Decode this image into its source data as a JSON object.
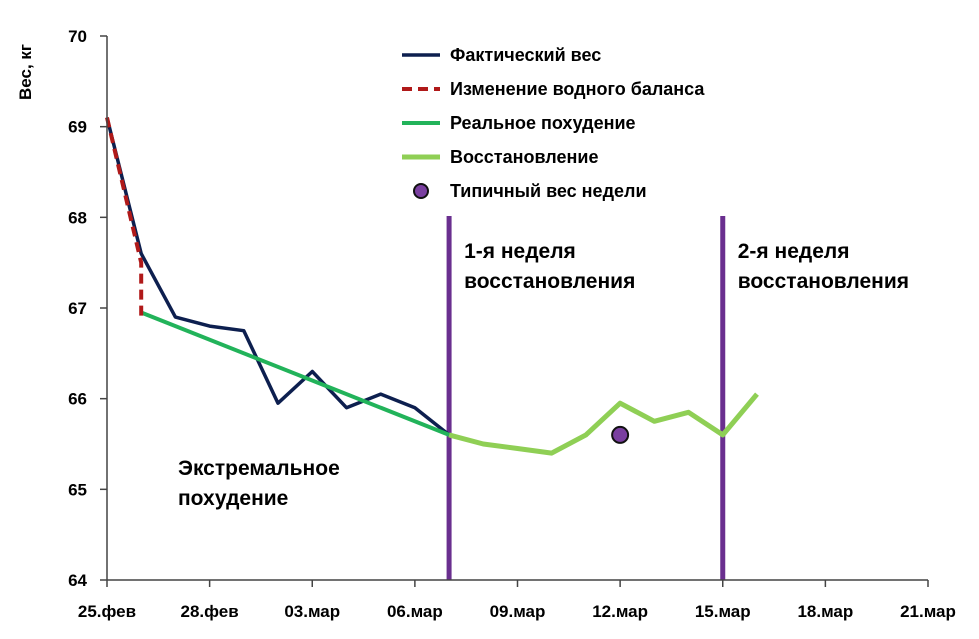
{
  "chart_data": {
    "type": "line",
    "ylabel": "Вес, кг",
    "xlabel": "",
    "ylim": [
      64,
      70
    ],
    "yticks": [
      64,
      65,
      66,
      67,
      68,
      69,
      70
    ],
    "xlim": [
      "25.фев",
      "21.мар"
    ],
    "xticks": [
      "25.фев",
      "28.фев",
      "03.мар",
      "06.мар",
      "09.мар",
      "12.мар",
      "15.мар",
      "18.мар",
      "21.мар"
    ],
    "grid": false,
    "legend_position": "top-center",
    "series": [
      {
        "name": "Фактический вес",
        "style": "solid",
        "color": "#0d1f4f",
        "x": [
          "25.фев",
          "26.фев",
          "27.фев",
          "28.фев",
          "01.мар",
          "02.мар",
          "03.мар",
          "04.мар",
          "05.мар",
          "06.мар",
          "07.мар"
        ],
        "y": [
          69.1,
          67.6,
          66.9,
          66.8,
          66.75,
          65.95,
          66.3,
          65.9,
          66.05,
          65.9,
          65.6
        ]
      },
      {
        "name": "Изменение водного баланса",
        "style": "dashed",
        "color": "#b01919",
        "x": [
          "25.фев",
          "26.фев",
          "26.фев"
        ],
        "y": [
          69.1,
          67.5,
          66.9
        ]
      },
      {
        "name": "Реальное похудение",
        "style": "solid",
        "color": "#22b35a",
        "x": [
          "26.фев",
          "07.мар"
        ],
        "y": [
          66.95,
          65.6
        ]
      },
      {
        "name": "Восстановление",
        "style": "solid",
        "color": "#8fcf55",
        "x": [
          "07.мар",
          "08.мар",
          "09.мар",
          "10.мар",
          "11.мар",
          "12.мар",
          "13.мар",
          "14.мар",
          "15.мар",
          "16.мар"
        ],
        "y": [
          65.6,
          65.5,
          65.45,
          65.4,
          65.6,
          65.95,
          65.75,
          65.85,
          65.6,
          66.05
        ]
      }
    ],
    "points": [
      {
        "name": "Типичный вес недели",
        "x": "12.мар",
        "y": 65.6,
        "color": "#7a3fa0"
      }
    ],
    "vlines": [
      {
        "x": "07.мар",
        "label_lines": [
          "1-я неделя",
          "восстановления"
        ],
        "color": "#6a2f8f"
      },
      {
        "x": "15.мар",
        "label_lines": [
          "2-я неделя",
          "восстановления"
        ],
        "color": "#6a2f8f"
      }
    ],
    "annotations": [
      {
        "lines": [
          "Экстремальное",
          "похудение"
        ],
        "x": "27.фев",
        "y": 65.2
      }
    ]
  }
}
